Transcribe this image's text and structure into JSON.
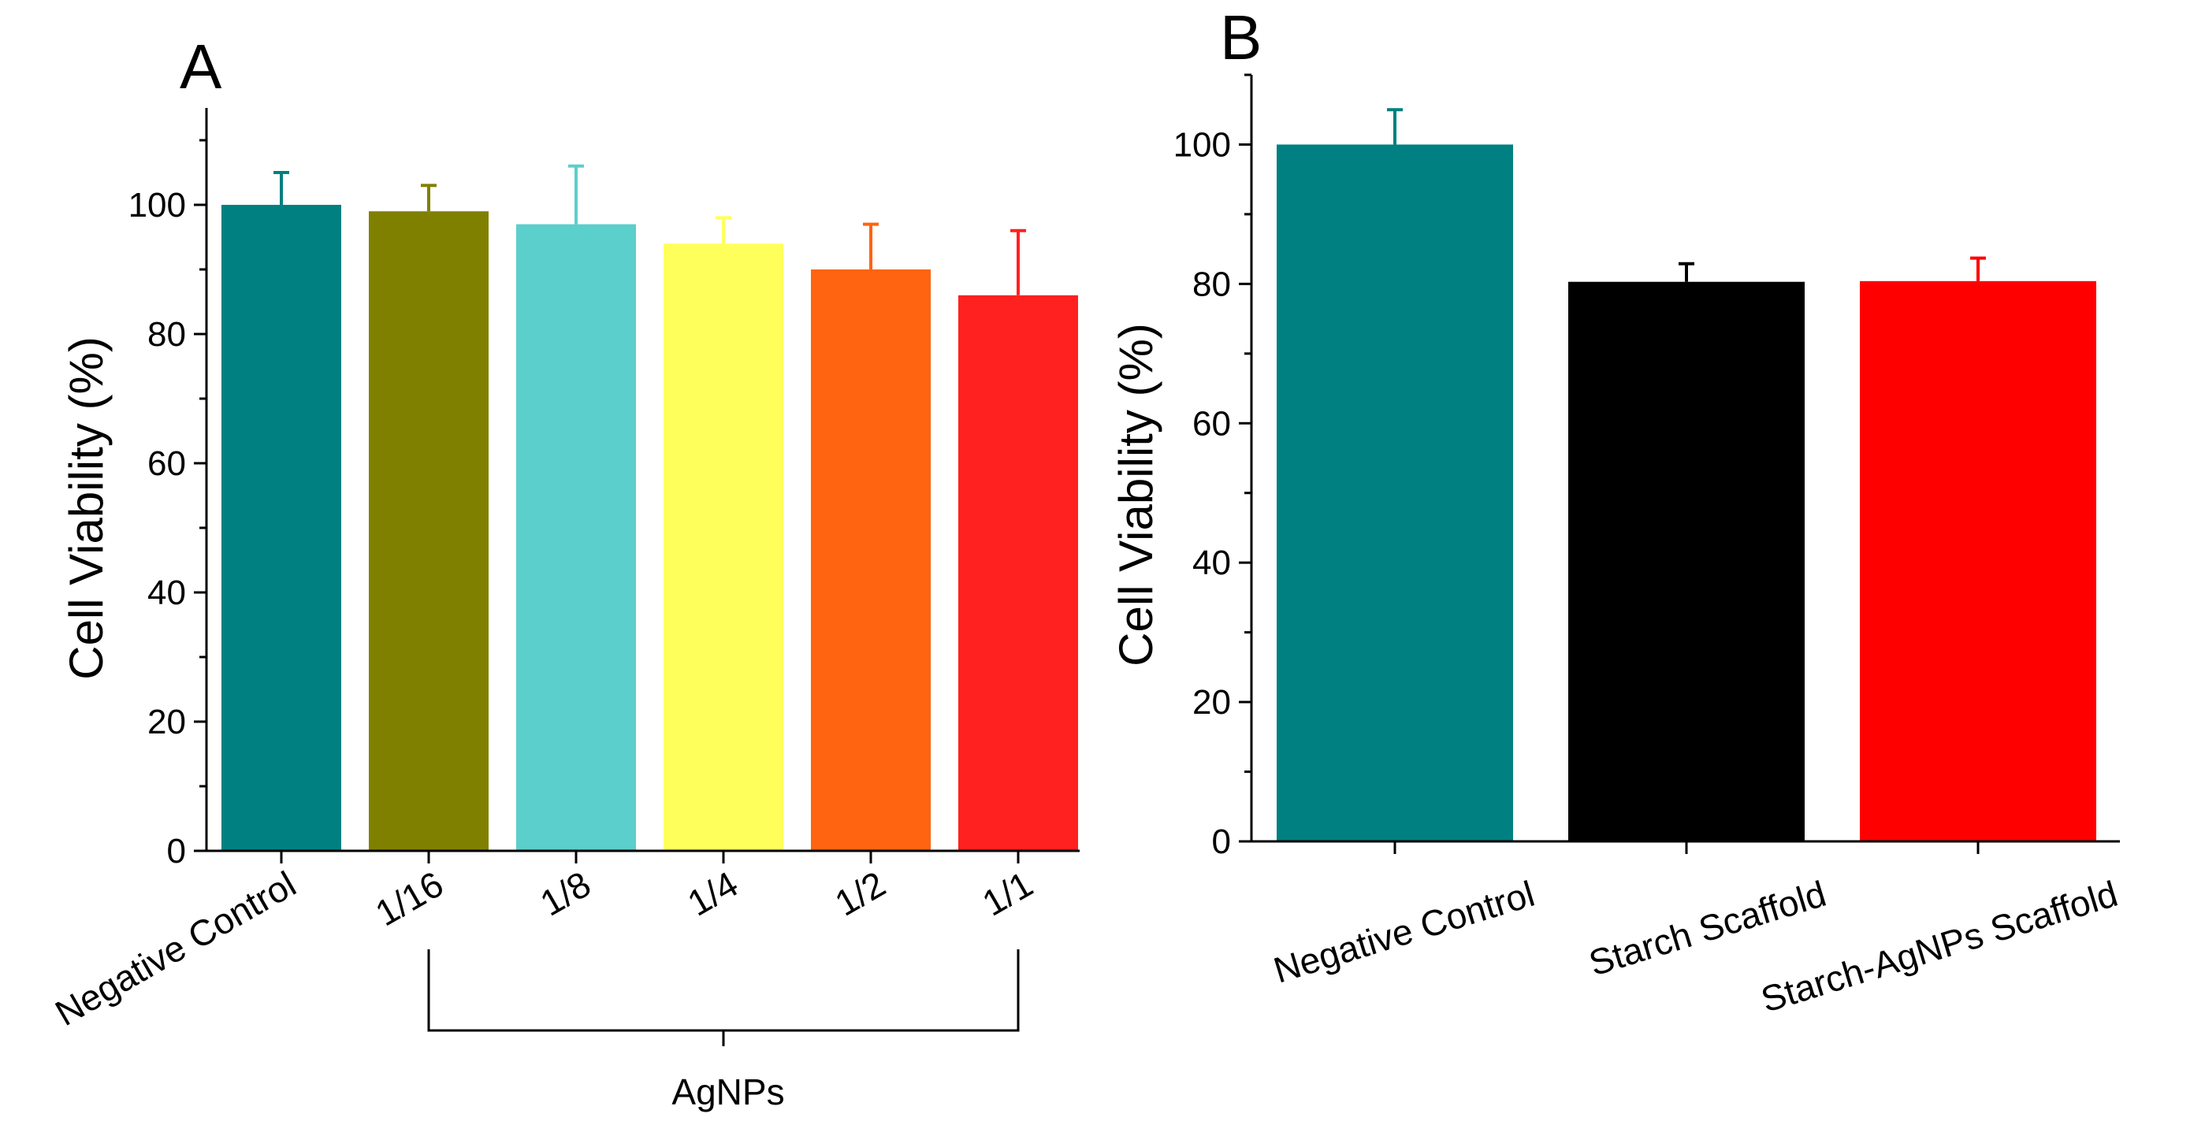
{
  "chart_data": [
    {
      "type": "bar",
      "panel": "A",
      "ylabel": "Cell Viability (%)",
      "xlabel": "",
      "ylim": [
        0,
        115
      ],
      "yticks": [
        0,
        20,
        40,
        60,
        80,
        100
      ],
      "categories": [
        "Negative Control",
        "1/16",
        "1/8",
        "1/4",
        "1/2",
        "1/1"
      ],
      "values": [
        100,
        99,
        97,
        94,
        90,
        86
      ],
      "errors": [
        5,
        4,
        9,
        4,
        7,
        10
      ],
      "colors": [
        "#008080",
        "#808000",
        "#5BCFCB",
        "#FFFF5C",
        "#FF6411",
        "#FF2020"
      ],
      "group_bracket": {
        "label": "AgNPs",
        "from": "1/16",
        "to": "1/1"
      },
      "grid": false,
      "legend": "none"
    },
    {
      "type": "bar",
      "panel": "B",
      "ylabel": "Cell Viability (%)",
      "xlabel": "",
      "ylim": [
        0,
        110
      ],
      "yticks": [
        0,
        20,
        40,
        60,
        80,
        100
      ],
      "categories": [
        "Negative Control",
        "Starch Scaffold",
        "Starch-AgNPs Scaffold"
      ],
      "values": [
        100,
        80.3,
        80.4
      ],
      "errors": [
        5,
        2.6,
        3.3
      ],
      "colors": [
        "#008080",
        "#000000",
        "#FF0000"
      ],
      "grid": false,
      "legend": "none"
    }
  ]
}
